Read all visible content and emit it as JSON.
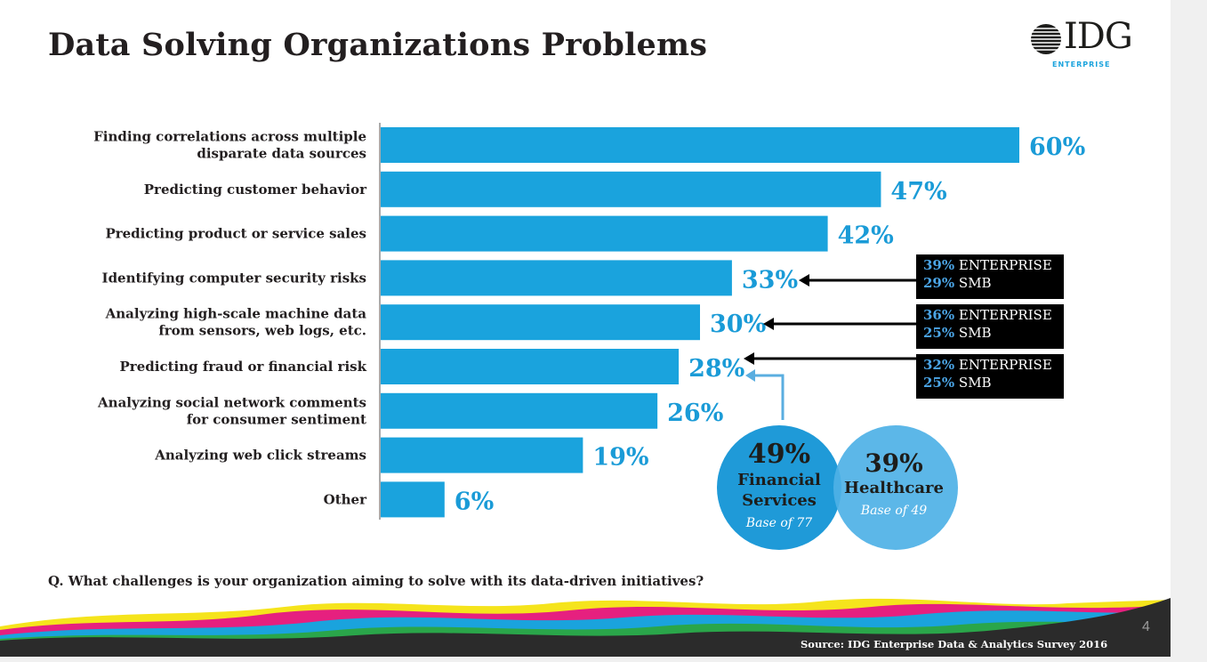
{
  "title": "Data Solving Organizations Problems",
  "logo": {
    "text": "IDG",
    "subtext": "ENTERPRISE"
  },
  "question": "Q. What challenges is your organization aiming to solve with its data-driven initiatives?",
  "source": "Source: IDG Enterprise Data & Analytics Survey 2016",
  "page_number": "4",
  "colors": {
    "bar": "#1aa3dd",
    "label": "#1a9bd7",
    "text": "#231f20",
    "venn": "#1f9ad8"
  },
  "chart_data": {
    "type": "bar",
    "orientation": "horizontal",
    "categories": [
      "Finding correlations across multiple disparate data sources",
      "Predicting customer behavior",
      "Predicting product or service sales",
      "Identifying computer security risks",
      "Analyzing high-scale machine data from sensors, web logs, etc.",
      "Predicting fraud or financial risk",
      "Analyzing social network comments for consumer sentiment",
      "Analyzing web click streams",
      "Other"
    ],
    "category_lines": [
      [
        "Finding correlations across multiple",
        "disparate data sources"
      ],
      [
        "Predicting customer behavior"
      ],
      [
        "Predicting product or service sales"
      ],
      [
        "Identifying computer security risks"
      ],
      [
        "Analyzing high-scale machine data",
        "from sensors, web logs, etc."
      ],
      [
        "Predicting fraud or financial risk"
      ],
      [
        "Analyzing social network comments",
        "for consumer sentiment"
      ],
      [
        "Analyzing web click streams"
      ],
      [
        "Other"
      ]
    ],
    "values": [
      60,
      47,
      42,
      33,
      30,
      28,
      26,
      19,
      6
    ],
    "value_labels": [
      "60%",
      "47%",
      "42%",
      "33%",
      "30%",
      "28%",
      "26%",
      "19%",
      "6%"
    ],
    "xlim": [
      0,
      60
    ],
    "unit": "%",
    "grid": false,
    "legend": false
  },
  "callouts": [
    {
      "target": "Identifying computer security risks",
      "enterprise_pct": "39%",
      "enterprise_label": "ENTERPRISE",
      "smb_pct": "29%",
      "smb_label": "SMB"
    },
    {
      "target": "Analyzing high-scale machine data from sensors, web logs, etc.",
      "enterprise_pct": "36%",
      "enterprise_label": "ENTERPRISE",
      "smb_pct": "25%",
      "smb_label": "SMB"
    },
    {
      "target": "Predicting fraud or financial risk",
      "enterprise_pct": "32%",
      "enterprise_label": "ENTERPRISE",
      "smb_pct": "25%",
      "smb_label": "SMB"
    }
  ],
  "venn": {
    "left": {
      "pct": "49%",
      "line1": "Financial",
      "line2": "Services",
      "base": "Base of 77"
    },
    "right": {
      "pct": "39%",
      "line1": "Healthcare",
      "base": "Base of 49"
    }
  }
}
